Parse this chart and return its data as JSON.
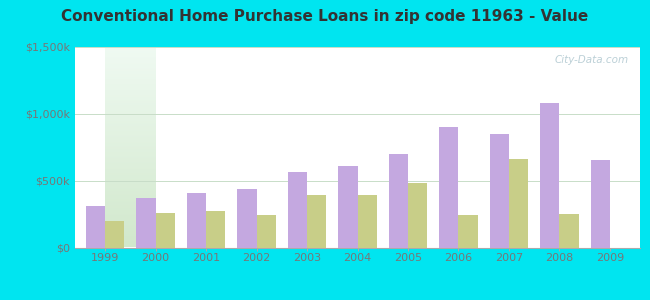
{
  "title": "Conventional Home Purchase Loans in zip code 11963 - Value",
  "years": [
    1999,
    2000,
    2001,
    2002,
    2003,
    2004,
    2005,
    2006,
    2007,
    2008,
    2009
  ],
  "hmda": [
    310000,
    370000,
    410000,
    440000,
    560000,
    610000,
    700000,
    900000,
    850000,
    1080000,
    650000
  ],
  "pmic": [
    200000,
    255000,
    270000,
    245000,
    390000,
    390000,
    480000,
    245000,
    660000,
    250000,
    0
  ],
  "hmda_color": "#c4a8e0",
  "pmic_color": "#c8ce88",
  "bg_outer": "#00e5f0",
  "ylim": [
    0,
    1500000
  ],
  "yticks": [
    0,
    500000,
    1000000,
    1500000
  ],
  "ytick_labels": [
    "$0",
    "$500k",
    "$1,000k",
    "$1,500k"
  ],
  "grid_color": "#c8ddc8",
  "title_fontsize": 11,
  "tick_fontsize": 8,
  "legend_fontsize": 9,
  "bar_width": 0.38,
  "watermark": "City-Data.com"
}
